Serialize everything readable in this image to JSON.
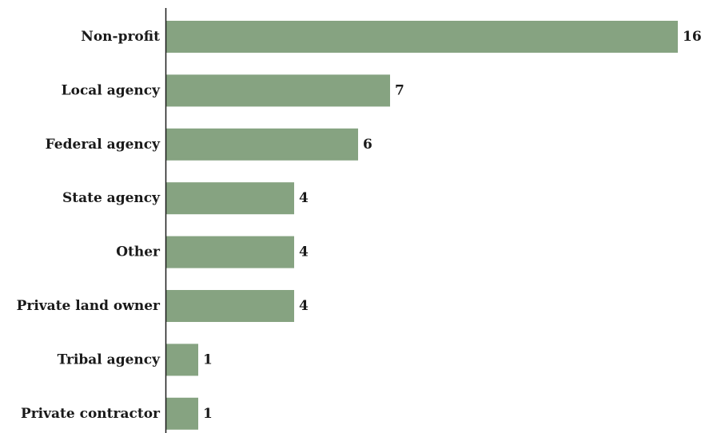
{
  "chart_data": {
    "type": "bar",
    "orientation": "horizontal",
    "title": "",
    "xlabel": "",
    "ylabel": "",
    "categories": [
      "Non-profit",
      "Local agency",
      "Federal agency",
      "State agency",
      "Other",
      "Private land owner",
      "Tribal agency",
      "Private contractor"
    ],
    "values": [
      16,
      7,
      6,
      4,
      4,
      4,
      1,
      1
    ],
    "xlim": [
      0,
      16
    ],
    "grid": false,
    "legend": "none",
    "data_labels": true,
    "bar_color": "#86a381",
    "axis_color": "#1a1a1a",
    "text_color": "#1a1a1a"
  }
}
